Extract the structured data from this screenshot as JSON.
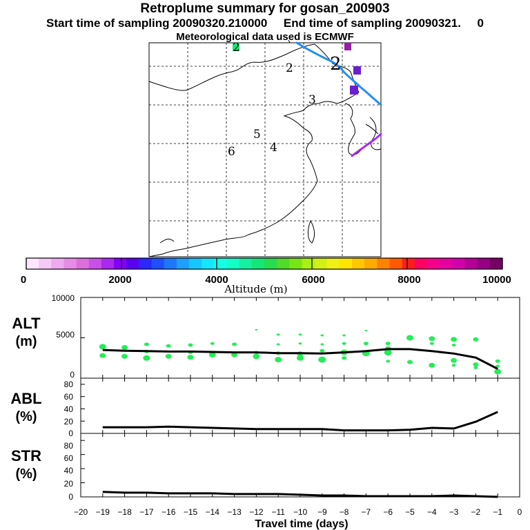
{
  "header": {
    "title": "Retroplume summary for gosan_200903",
    "line2": "Start time of sampling 20090320.210000     End time of sampling 20090321.     0",
    "line3": "Meteorological data used is ECMWF"
  },
  "map": {
    "day_markers": [
      "2",
      "2",
      "3",
      "4",
      "5",
      "6"
    ]
  },
  "colorbar": {
    "colors": [
      "#ffe6ff",
      "#f5c8f5",
      "#eeaaee",
      "#e68ce6",
      "#dd6edd",
      "#c850e6",
      "#aa28f0",
      "#8200f5",
      "#5a00f0",
      "#2828ff",
      "#1e50ff",
      "#1e78ff",
      "#1ea0ff",
      "#14c8ff",
      "#14e6ff",
      "#14ffe6",
      "#14ffc8",
      "#14f0a0",
      "#14e678",
      "#28dc50",
      "#50dc28",
      "#78e614",
      "#aaf014",
      "#d2f014",
      "#f0f014",
      "#ffe600",
      "#ffc800",
      "#ffaa00",
      "#ff8200",
      "#ff5a00",
      "#ff1e1e",
      "#ff0064",
      "#f5008c",
      "#e600a0",
      "#d200aa",
      "#b40096",
      "#960082",
      "#780064"
    ],
    "tick_labels": [
      "0",
      "2000",
      "4000",
      "6000",
      "8000",
      "10000"
    ],
    "label": "Altitude (m)"
  },
  "chart_data": [
    {
      "type": "line",
      "name": "ALT",
      "ylabel": [
        "ALT",
        "(m)"
      ],
      "ylim": [
        0,
        10000
      ],
      "yticks": [
        "0",
        "5000",
        "10000"
      ],
      "x": [
        -19,
        -18,
        -17,
        -16,
        -15,
        -14,
        -13,
        -12,
        -11,
        -10,
        -9,
        -8,
        -7,
        -6,
        -5,
        -4,
        -3,
        -2,
        -1
      ],
      "values": [
        3500,
        3400,
        3350,
        3300,
        3300,
        3250,
        3200,
        3200,
        3100,
        3100,
        3050,
        3200,
        3350,
        3600,
        3600,
        3350,
        3050,
        2550,
        1150
      ],
      "scatter_color": "#22ee55",
      "scatter": [
        [
          -19,
          3900,
          8
        ],
        [
          -19,
          2800,
          7
        ],
        [
          -18,
          3800,
          7
        ],
        [
          -18,
          2700,
          7
        ],
        [
          -17,
          4200,
          5
        ],
        [
          -17,
          3300,
          5
        ],
        [
          -17,
          2500,
          8
        ],
        [
          -16,
          4000,
          5
        ],
        [
          -16,
          2700,
          7
        ],
        [
          -15,
          4100,
          5
        ],
        [
          -15,
          3200,
          5
        ],
        [
          -15,
          2600,
          7
        ],
        [
          -14,
          4300,
          4
        ],
        [
          -14,
          2900,
          8
        ],
        [
          -13,
          4200,
          5
        ],
        [
          -13,
          2900,
          7
        ],
        [
          -12,
          6000,
          2
        ],
        [
          -12,
          3200,
          4
        ],
        [
          -12,
          2700,
          8
        ],
        [
          -11,
          5400,
          3
        ],
        [
          -11,
          4200,
          3
        ],
        [
          -11,
          3100,
          5
        ],
        [
          -11,
          2300,
          8
        ],
        [
          -10,
          5400,
          3
        ],
        [
          -10,
          4300,
          3
        ],
        [
          -10,
          3000,
          7
        ],
        [
          -10,
          2500,
          8
        ],
        [
          -9,
          5300,
          3
        ],
        [
          -9,
          4200,
          3
        ],
        [
          -9,
          3400,
          5
        ],
        [
          -9,
          2300,
          9
        ],
        [
          -8,
          5300,
          3
        ],
        [
          -8,
          4300,
          4
        ],
        [
          -8,
          3200,
          8
        ],
        [
          -8,
          2500,
          5
        ],
        [
          -7,
          5900,
          2
        ],
        [
          -7,
          4300,
          5
        ],
        [
          -7,
          3100,
          9
        ],
        [
          -6,
          4300,
          5
        ],
        [
          -6,
          3700,
          6
        ],
        [
          -6,
          3200,
          9
        ],
        [
          -6,
          2100,
          4
        ],
        [
          -5,
          5000,
          8
        ],
        [
          -5,
          2000,
          6
        ],
        [
          -4,
          4900,
          7
        ],
        [
          -4,
          4300,
          4
        ],
        [
          -4,
          1600,
          7
        ],
        [
          -3,
          4800,
          7
        ],
        [
          -3,
          4100,
          4
        ],
        [
          -3,
          2200,
          7
        ],
        [
          -3,
          1600,
          4
        ],
        [
          -2,
          4800,
          6
        ],
        [
          -2,
          1700,
          6
        ],
        [
          -2,
          1300,
          4
        ],
        [
          -1,
          2100,
          5
        ],
        [
          -1,
          1500,
          4
        ],
        [
          -1,
          800,
          8
        ]
      ]
    },
    {
      "type": "line",
      "name": "ABL",
      "ylabel": [
        "ABL",
        "(%)"
      ],
      "ylim": [
        0,
        90
      ],
      "yticks": [
        "0",
        "20",
        "40",
        "60",
        "80"
      ],
      "x": [
        -19,
        -18,
        -17,
        -16,
        -15,
        -14,
        -13,
        -12,
        -11,
        -10,
        -9,
        -8,
        -7,
        -6,
        -5,
        -4,
        -3,
        -2,
        -1
      ],
      "values": [
        10,
        10,
        10,
        11,
        10,
        9,
        8,
        7,
        7,
        7,
        7,
        5,
        5,
        5,
        6,
        9,
        8,
        19,
        35
      ]
    },
    {
      "type": "line",
      "name": "STR",
      "ylabel": [
        "STR",
        "(%)"
      ],
      "ylim": [
        0,
        90
      ],
      "yticks": [
        "0",
        "20",
        "40",
        "60",
        "80"
      ],
      "x": [
        -19,
        -18,
        -17,
        -16,
        -15,
        -14,
        -13,
        -12,
        -11,
        -10,
        -9,
        -8,
        -7,
        -6,
        -5,
        -4,
        -3,
        -2,
        -1
      ],
      "values": [
        7,
        6,
        6,
        5,
        5,
        5,
        4,
        4,
        4,
        3,
        2,
        2,
        1,
        1,
        1,
        1,
        2,
        1,
        0
      ],
      "xlabel": "Travel time (days)",
      "xlim": [
        -20,
        0
      ],
      "xticks": [
        "−20",
        "−19",
        "−18",
        "−17",
        "−16",
        "−15",
        "−14",
        "−13",
        "−12",
        "−11",
        "−10",
        "−9",
        "−8",
        "−7",
        "−6",
        "−5",
        "−4",
        "−3",
        "−2",
        "−1",
        "0"
      ]
    }
  ]
}
